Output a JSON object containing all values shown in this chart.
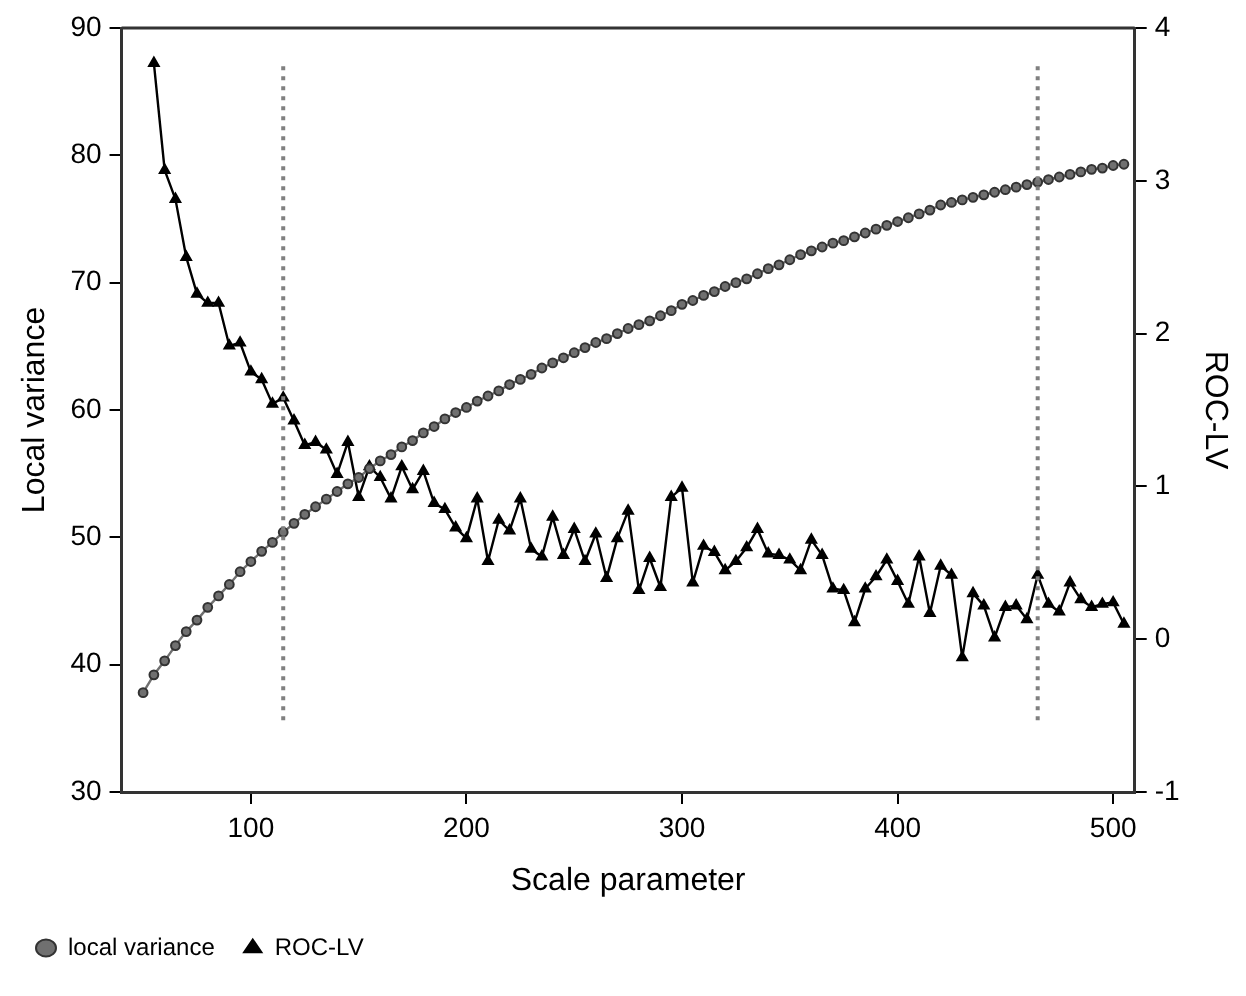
{
  "chart_data": {
    "type": "line",
    "xlabel": "Scale parameter",
    "ylabel": "Local variance",
    "y2label": "ROC-LV",
    "xlim": [
      40,
      510
    ],
    "xticks": [
      100,
      200,
      300,
      400,
      500
    ],
    "ylim": [
      30,
      90
    ],
    "yticks": [
      30,
      40,
      50,
      60,
      70,
      80,
      90
    ],
    "y2lim": [
      -1,
      4
    ],
    "y2ticks": [
      -1,
      0,
      1,
      2,
      3,
      4
    ],
    "grid": false,
    "legend": "bottom left",
    "ref_lines": [
      {
        "axis": "x",
        "value": 115,
        "color": "#808080",
        "line_style": "dotted"
      },
      {
        "axis": "x",
        "value": 465,
        "color": "#808080",
        "line_style": "dotted"
      }
    ],
    "series": [
      {
        "name": "local variance",
        "color": "#707070",
        "marker": "circle",
        "x": [
          50,
          55,
          60,
          65,
          70,
          75,
          80,
          85,
          90,
          95,
          100,
          105,
          110,
          115,
          120,
          125,
          130,
          135,
          140,
          145,
          150,
          155,
          160,
          165,
          170,
          175,
          180,
          185,
          190,
          195,
          200,
          205,
          210,
          215,
          220,
          225,
          230,
          235,
          240,
          245,
          250,
          255,
          260,
          265,
          270,
          275,
          280,
          285,
          290,
          295,
          300,
          305,
          310,
          315,
          320,
          325,
          330,
          335,
          340,
          345,
          350,
          355,
          360,
          365,
          370,
          375,
          380,
          385,
          390,
          395,
          400,
          405,
          410,
          415,
          420,
          425,
          430,
          435,
          440,
          445,
          450,
          455,
          460,
          465,
          470,
          475,
          480,
          485,
          490,
          495,
          500,
          505
        ],
        "values": [
          37.8,
          39.2,
          40.3,
          41.5,
          42.6,
          43.5,
          44.5,
          45.4,
          46.3,
          47.3,
          48.1,
          48.9,
          49.6,
          50.4,
          51.1,
          51.8,
          52.4,
          53.0,
          53.6,
          54.2,
          54.7,
          55.4,
          56.0,
          56.5,
          57.1,
          57.6,
          58.2,
          58.7,
          59.3,
          59.8,
          60.2,
          60.7,
          61.1,
          61.5,
          62.0,
          62.4,
          62.8,
          63.3,
          63.7,
          64.1,
          64.5,
          64.9,
          65.3,
          65.6,
          66.0,
          66.4,
          66.7,
          67.0,
          67.4,
          67.8,
          68.3,
          68.6,
          69.0,
          69.3,
          69.7,
          70.0,
          70.3,
          70.7,
          71.1,
          71.4,
          71.8,
          72.2,
          72.5,
          72.8,
          73.1,
          73.3,
          73.6,
          73.9,
          74.2,
          74.5,
          74.8,
          75.1,
          75.4,
          75.7,
          76.1,
          76.3,
          76.5,
          76.7,
          76.9,
          77.1,
          77.3,
          77.5,
          77.7,
          77.9,
          78.1,
          78.3,
          78.5,
          78.7,
          78.9,
          79.0,
          79.2,
          79.3
        ]
      },
      {
        "name": "ROC-LV",
        "axis": "y2",
        "color": "#000000",
        "marker": "triangle",
        "x": [
          55,
          60,
          65,
          70,
          75,
          80,
          85,
          90,
          95,
          100,
          105,
          110,
          115,
          120,
          125,
          130,
          135,
          140,
          145,
          150,
          155,
          160,
          165,
          170,
          175,
          180,
          185,
          190,
          195,
          200,
          205,
          210,
          215,
          220,
          225,
          230,
          235,
          240,
          245,
          250,
          255,
          260,
          265,
          270,
          275,
          280,
          285,
          290,
          295,
          300,
          305,
          310,
          315,
          320,
          325,
          330,
          335,
          340,
          345,
          350,
          355,
          360,
          365,
          370,
          375,
          380,
          385,
          390,
          395,
          400,
          405,
          410,
          415,
          420,
          425,
          430,
          435,
          440,
          445,
          450,
          455,
          460,
          465,
          470,
          475,
          480,
          485,
          490,
          495,
          500,
          505
        ],
        "values": [
          3.77,
          3.07,
          2.88,
          2.5,
          2.26,
          2.2,
          2.2,
          1.92,
          1.94,
          1.75,
          1.7,
          1.54,
          1.58,
          1.43,
          1.27,
          1.29,
          1.24,
          1.08,
          1.29,
          0.93,
          1.13,
          1.06,
          0.92,
          1.13,
          0.98,
          1.1,
          0.89,
          0.85,
          0.73,
          0.66,
          0.92,
          0.51,
          0.78,
          0.71,
          0.92,
          0.59,
          0.54,
          0.8,
          0.55,
          0.72,
          0.51,
          0.69,
          0.4,
          0.66,
          0.84,
          0.32,
          0.53,
          0.34,
          0.93,
          0.99,
          0.37,
          0.61,
          0.57,
          0.45,
          0.51,
          0.6,
          0.72,
          0.56,
          0.55,
          0.52,
          0.45,
          0.65,
          0.55,
          0.33,
          0.32,
          0.11,
          0.33,
          0.41,
          0.52,
          0.38,
          0.23,
          0.54,
          0.17,
          0.48,
          0.42,
          -0.12,
          0.3,
          0.22,
          0.01,
          0.21,
          0.22,
          0.13,
          0.42,
          0.23,
          0.18,
          0.37,
          0.26,
          0.21,
          0.23,
          0.24,
          0.1
        ]
      }
    ]
  }
}
